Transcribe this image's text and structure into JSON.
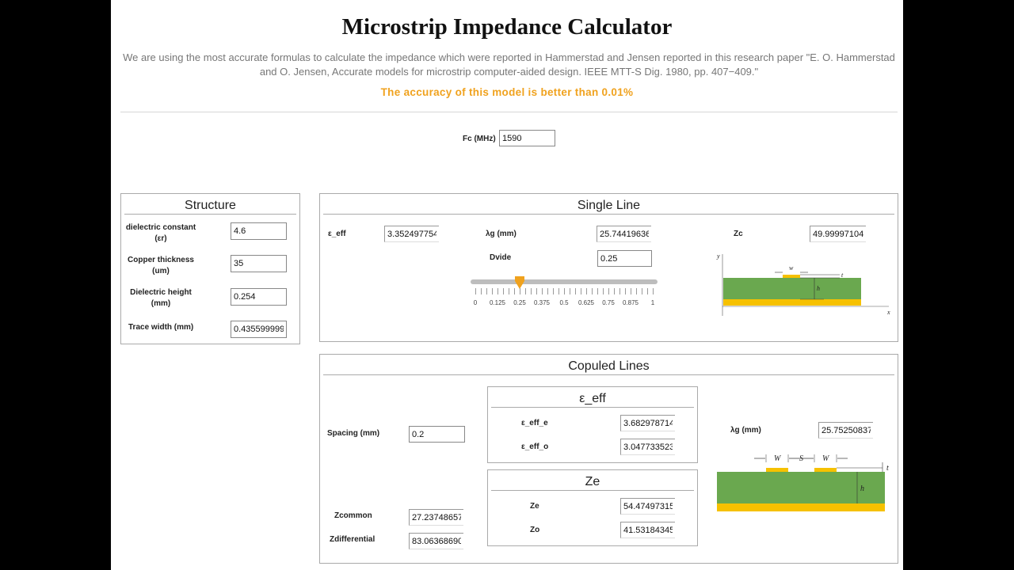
{
  "header": {
    "title": "Microstrip Impedance Calculator",
    "description": "We are using the most accurate formulas to calculate the impedance which were reported in Hammerstad and Jensen reported in this research paper \"E. O. Hammerstad and O. Jensen, Accurate models for microstrip computer-aided design. IEEE MTT-S Dig. 1980, pp. 407−409.\"",
    "accuracy": "The accuracy of this model is better than 0.01%"
  },
  "fc": {
    "label": "Fc (MHz)",
    "value": "1590"
  },
  "structure": {
    "title": "Structure",
    "dielectric_line1": "dielectric constant",
    "dielectric_line2": "(εr)",
    "dielectric_value": "4.6",
    "copper_line1": "Copper thickness",
    "copper_line2": "(um)",
    "copper_value": "35",
    "height_line1": "Dielectric height",
    "height_line2": "(mm)",
    "height_value": "0.254",
    "width_label": "Trace width (mm)",
    "width_value": "0.435599999"
  },
  "single_line": {
    "title": "Single Line",
    "eeff_label": "ε_eff",
    "eeff_value": "3.352497754",
    "lambda_label": "λg (mm)",
    "lambda_value": "25.744196360",
    "zc_label": "Zc",
    "zc_value": "49.99997104",
    "dvide_label": "Dvide",
    "dvide_value": "0.25",
    "slider_fraction": 0.25,
    "ticks": [
      "0",
      "0.125",
      "0.25",
      "0.375",
      "0.5",
      "0.625",
      "0.75",
      "0.875",
      "1"
    ],
    "diagram": {
      "w": "w",
      "t": "t",
      "h": "h",
      "y": "y",
      "x": "x"
    }
  },
  "coupled_lines": {
    "title": "Copuled Lines",
    "spacing_label": "Spacing (mm)",
    "spacing_value": "0.2",
    "eeff_box_title": "ε_eff",
    "eeff_e_label": "ε_eff_e",
    "eeff_e_value": "3.682978714",
    "eeff_o_label": "ε_eff_o",
    "eeff_o_value": "3.047733523",
    "ze_box_title": "Ze",
    "ze_label": "Ze",
    "ze_value": "54.47497315",
    "zo_label": "Zo",
    "zo_value": "41.53184345",
    "lambda_label": "λg (mm)",
    "lambda_value": "25.75250837",
    "zcommon_label": "Zcommon",
    "zcommon_value": "27.23748657",
    "zdiff_label": "Zdifferential",
    "zdiff_value": "83.06368690",
    "diagram": {
      "w1": "W",
      "s": "S",
      "w2": "W",
      "t": "t",
      "h": "h"
    }
  },
  "colors": {
    "accent": "#f0a21e",
    "substrate": "#6aa84f",
    "copper": "#f6c100",
    "track": "#bdbdbd"
  }
}
